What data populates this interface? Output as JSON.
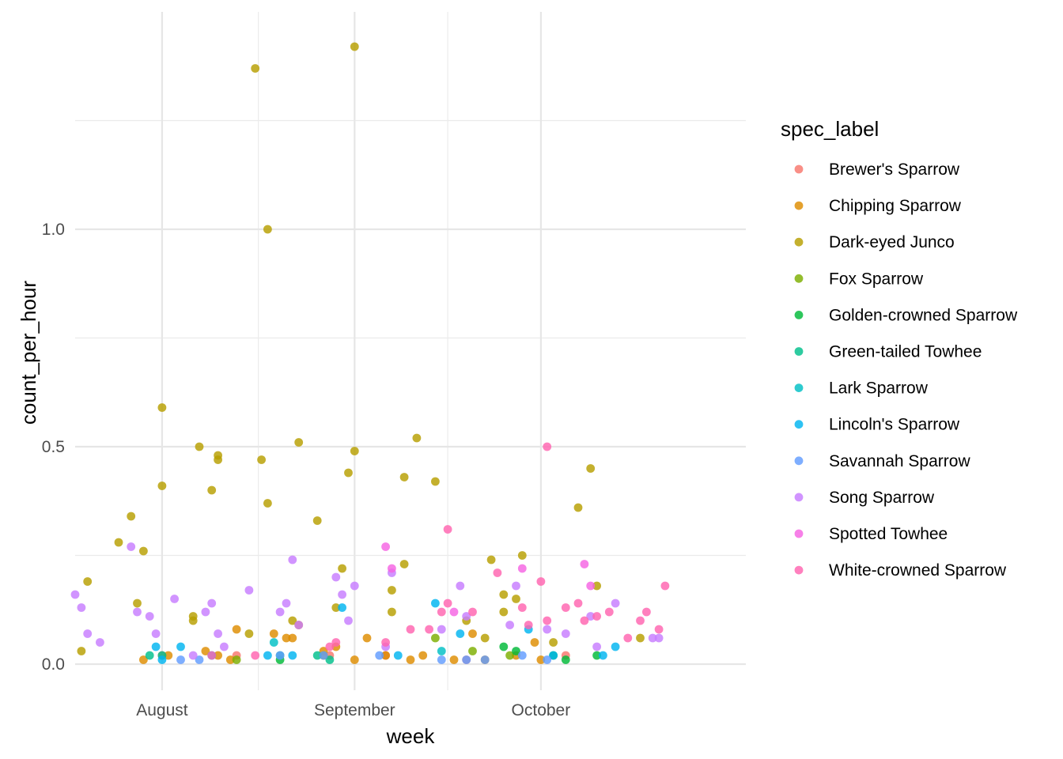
{
  "chart_data": {
    "type": "scatter",
    "xlabel": "week",
    "ylabel": "count_per_hour",
    "x_ticks": [
      "August",
      "September",
      "October"
    ],
    "x_tick_dates": [
      "2023-08-01",
      "2023-09-01",
      "2023-10-01"
    ],
    "y_ticks": [
      0.0,
      0.5,
      1.0
    ],
    "y_tick_labels": [
      "0.0",
      "0.5",
      "1.0"
    ],
    "xlim": [
      "2023-07-18",
      "2023-11-03"
    ],
    "ylim": [
      -0.06,
      1.5
    ],
    "grid": true,
    "legend": {
      "title": "spec_label",
      "placement": "right"
    },
    "series": [
      {
        "name": "Brewer's Sparrow",
        "color": "#F8766D",
        "points": [
          [
            "2023-08-01",
            0.02
          ],
          [
            "2023-08-13",
            0.02
          ],
          [
            "2023-08-28",
            0.02
          ],
          [
            "2023-09-06",
            0.02
          ],
          [
            "2023-09-19",
            0.01
          ],
          [
            "2023-10-05",
            0.02
          ]
        ]
      },
      {
        "name": "Chipping Sparrow",
        "color": "#DE8C00",
        "points": [
          [
            "2023-07-29",
            0.01
          ],
          [
            "2023-08-02",
            0.02
          ],
          [
            "2023-08-08",
            0.03
          ],
          [
            "2023-08-10",
            0.02
          ],
          [
            "2023-08-12",
            0.01
          ],
          [
            "2023-08-13",
            0.08
          ],
          [
            "2023-08-19",
            0.07
          ],
          [
            "2023-08-21",
            0.06
          ],
          [
            "2023-08-22",
            0.06
          ],
          [
            "2023-08-23",
            0.09
          ],
          [
            "2023-08-27",
            0.03
          ],
          [
            "2023-08-29",
            0.04
          ],
          [
            "2023-09-01",
            0.01
          ],
          [
            "2023-09-03",
            0.06
          ],
          [
            "2023-09-06",
            0.02
          ],
          [
            "2023-09-10",
            0.01
          ],
          [
            "2023-09-12",
            0.02
          ],
          [
            "2023-09-17",
            0.01
          ],
          [
            "2023-09-20",
            0.07
          ],
          [
            "2023-09-22",
            0.01
          ],
          [
            "2023-09-27",
            0.02
          ],
          [
            "2023-09-30",
            0.05
          ],
          [
            "2023-10-01",
            0.01
          ]
        ]
      },
      {
        "name": "Dark-eyed Junco",
        "color": "#B79F00",
        "points": [
          [
            "2023-07-19",
            0.03
          ],
          [
            "2023-07-20",
            0.19
          ],
          [
            "2023-07-25",
            0.28
          ],
          [
            "2023-07-27",
            0.34
          ],
          [
            "2023-07-28",
            0.14
          ],
          [
            "2023-07-29",
            0.26
          ],
          [
            "2023-08-01",
            0.59
          ],
          [
            "2023-08-01",
            0.41
          ],
          [
            "2023-08-06",
            0.11
          ],
          [
            "2023-08-06",
            0.1
          ],
          [
            "2023-08-07",
            0.5
          ],
          [
            "2023-08-09",
            0.4
          ],
          [
            "2023-08-10",
            0.47
          ],
          [
            "2023-08-10",
            0.48
          ],
          [
            "2023-08-15",
            0.07
          ],
          [
            "2023-08-16",
            1.37
          ],
          [
            "2023-08-17",
            0.47
          ],
          [
            "2023-08-18",
            1.0
          ],
          [
            "2023-08-18",
            0.37
          ],
          [
            "2023-08-22",
            0.1
          ],
          [
            "2023-08-23",
            0.51
          ],
          [
            "2023-08-26",
            0.33
          ],
          [
            "2023-08-27",
            0.02
          ],
          [
            "2023-08-29",
            0.13
          ],
          [
            "2023-08-30",
            0.22
          ],
          [
            "2023-08-31",
            0.44
          ],
          [
            "2023-09-01",
            0.49
          ],
          [
            "2023-09-01",
            1.42
          ],
          [
            "2023-09-07",
            0.17
          ],
          [
            "2023-09-07",
            0.12
          ],
          [
            "2023-09-09",
            0.43
          ],
          [
            "2023-09-09",
            0.23
          ],
          [
            "2023-09-11",
            0.52
          ],
          [
            "2023-09-14",
            0.42
          ],
          [
            "2023-09-19",
            0.1
          ],
          [
            "2023-09-22",
            0.06
          ],
          [
            "2023-09-23",
            0.24
          ],
          [
            "2023-09-25",
            0.12
          ],
          [
            "2023-09-25",
            0.16
          ],
          [
            "2023-09-27",
            0.15
          ],
          [
            "2023-09-28",
            0.25
          ],
          [
            "2023-10-03",
            0.05
          ],
          [
            "2023-10-07",
            0.36
          ],
          [
            "2023-10-09",
            0.45
          ],
          [
            "2023-10-10",
            0.18
          ],
          [
            "2023-10-17",
            0.06
          ]
        ]
      },
      {
        "name": "Fox Sparrow",
        "color": "#7CAE00",
        "points": [
          [
            "2023-08-13",
            0.01
          ],
          [
            "2023-09-14",
            0.06
          ],
          [
            "2023-09-20",
            0.03
          ],
          [
            "2023-09-26",
            0.02
          ]
        ]
      },
      {
        "name": "Golden-crowned Sparrow",
        "color": "#00BA38",
        "points": [
          [
            "2023-08-20",
            0.01
          ],
          [
            "2023-09-25",
            0.04
          ],
          [
            "2023-09-27",
            0.03
          ],
          [
            "2023-10-03",
            0.02
          ],
          [
            "2023-10-05",
            0.01
          ],
          [
            "2023-10-10",
            0.02
          ]
        ]
      },
      {
        "name": "Green-tailed Towhee",
        "color": "#00C08B",
        "points": [
          [
            "2023-07-30",
            0.02
          ],
          [
            "2023-08-01",
            0.02
          ],
          [
            "2023-08-20",
            0.02
          ],
          [
            "2023-08-26",
            0.02
          ],
          [
            "2023-08-28",
            0.01
          ]
        ]
      },
      {
        "name": "Lark Sparrow",
        "color": "#00BFC4",
        "points": [
          [
            "2023-08-19",
            0.05
          ],
          [
            "2023-09-15",
            0.03
          ]
        ]
      },
      {
        "name": "Lincoln's Sparrow",
        "color": "#00B4F0",
        "points": [
          [
            "2023-07-31",
            0.04
          ],
          [
            "2023-08-01",
            0.01
          ],
          [
            "2023-08-04",
            0.04
          ],
          [
            "2023-08-09",
            0.02
          ],
          [
            "2023-08-18",
            0.02
          ],
          [
            "2023-08-22",
            0.02
          ],
          [
            "2023-08-30",
            0.13
          ],
          [
            "2023-09-08",
            0.02
          ],
          [
            "2023-09-14",
            0.14
          ],
          [
            "2023-09-18",
            0.07
          ],
          [
            "2023-09-29",
            0.08
          ],
          [
            "2023-10-03",
            0.02
          ],
          [
            "2023-10-11",
            0.02
          ],
          [
            "2023-10-13",
            0.04
          ]
        ]
      },
      {
        "name": "Savannah Sparrow",
        "color": "#619CFF",
        "points": [
          [
            "2023-08-04",
            0.01
          ],
          [
            "2023-08-07",
            0.01
          ],
          [
            "2023-08-20",
            0.02
          ],
          [
            "2023-08-27",
            0.02
          ],
          [
            "2023-09-05",
            0.02
          ],
          [
            "2023-09-15",
            0.01
          ],
          [
            "2023-09-19",
            0.01
          ],
          [
            "2023-09-22",
            0.01
          ],
          [
            "2023-09-28",
            0.02
          ],
          [
            "2023-10-02",
            0.01
          ]
        ]
      },
      {
        "name": "Song Sparrow",
        "color": "#C77CFF",
        "points": [
          [
            "2023-07-18",
            0.16
          ],
          [
            "2023-07-19",
            0.13
          ],
          [
            "2023-07-20",
            0.07
          ],
          [
            "2023-07-22",
            0.05
          ],
          [
            "2023-07-27",
            0.27
          ],
          [
            "2023-07-28",
            0.12
          ],
          [
            "2023-07-30",
            0.11
          ],
          [
            "2023-07-31",
            0.07
          ],
          [
            "2023-08-03",
            0.15
          ],
          [
            "2023-08-06",
            0.02
          ],
          [
            "2023-08-08",
            0.12
          ],
          [
            "2023-08-09",
            0.14
          ],
          [
            "2023-08-10",
            0.07
          ],
          [
            "2023-08-11",
            0.04
          ],
          [
            "2023-08-15",
            0.17
          ],
          [
            "2023-08-20",
            0.12
          ],
          [
            "2023-08-21",
            0.14
          ],
          [
            "2023-08-22",
            0.24
          ],
          [
            "2023-08-23",
            0.09
          ],
          [
            "2023-08-29",
            0.2
          ],
          [
            "2023-08-30",
            0.16
          ],
          [
            "2023-08-31",
            0.1
          ],
          [
            "2023-09-01",
            0.18
          ],
          [
            "2023-09-06",
            0.04
          ],
          [
            "2023-09-07",
            0.21
          ],
          [
            "2023-09-15",
            0.08
          ],
          [
            "2023-09-18",
            0.18
          ],
          [
            "2023-09-19",
            0.11
          ],
          [
            "2023-09-26",
            0.09
          ],
          [
            "2023-09-27",
            0.18
          ],
          [
            "2023-10-02",
            0.08
          ],
          [
            "2023-10-05",
            0.07
          ],
          [
            "2023-10-09",
            0.11
          ],
          [
            "2023-10-10",
            0.04
          ],
          [
            "2023-10-13",
            0.14
          ],
          [
            "2023-10-19",
            0.06
          ],
          [
            "2023-10-20",
            0.06
          ]
        ]
      },
      {
        "name": "Spotted Towhee",
        "color": "#F564E3",
        "points": [
          [
            "2023-09-06",
            0.27
          ],
          [
            "2023-09-07",
            0.22
          ],
          [
            "2023-09-17",
            0.12
          ],
          [
            "2023-09-28",
            0.22
          ],
          [
            "2023-10-08",
            0.23
          ],
          [
            "2023-10-09",
            0.18
          ]
        ]
      },
      {
        "name": "White-crowned Sparrow",
        "color": "#FF64B0",
        "points": [
          [
            "2023-08-09",
            0.02
          ],
          [
            "2023-08-16",
            0.02
          ],
          [
            "2023-08-28",
            0.04
          ],
          [
            "2023-08-29",
            0.05
          ],
          [
            "2023-09-06",
            0.05
          ],
          [
            "2023-09-10",
            0.08
          ],
          [
            "2023-09-13",
            0.08
          ],
          [
            "2023-09-15",
            0.12
          ],
          [
            "2023-09-16",
            0.31
          ],
          [
            "2023-09-16",
            0.14
          ],
          [
            "2023-09-20",
            0.12
          ],
          [
            "2023-09-24",
            0.21
          ],
          [
            "2023-09-28",
            0.13
          ],
          [
            "2023-09-29",
            0.09
          ],
          [
            "2023-10-01",
            0.19
          ],
          [
            "2023-10-02",
            0.5
          ],
          [
            "2023-10-02",
            0.1
          ],
          [
            "2023-10-05",
            0.13
          ],
          [
            "2023-10-07",
            0.14
          ],
          [
            "2023-10-08",
            0.1
          ],
          [
            "2023-10-10",
            0.11
          ],
          [
            "2023-10-12",
            0.12
          ],
          [
            "2023-10-15",
            0.06
          ],
          [
            "2023-10-17",
            0.1
          ],
          [
            "2023-10-18",
            0.12
          ],
          [
            "2023-10-20",
            0.08
          ],
          [
            "2023-10-21",
            0.18
          ]
        ]
      }
    ]
  }
}
